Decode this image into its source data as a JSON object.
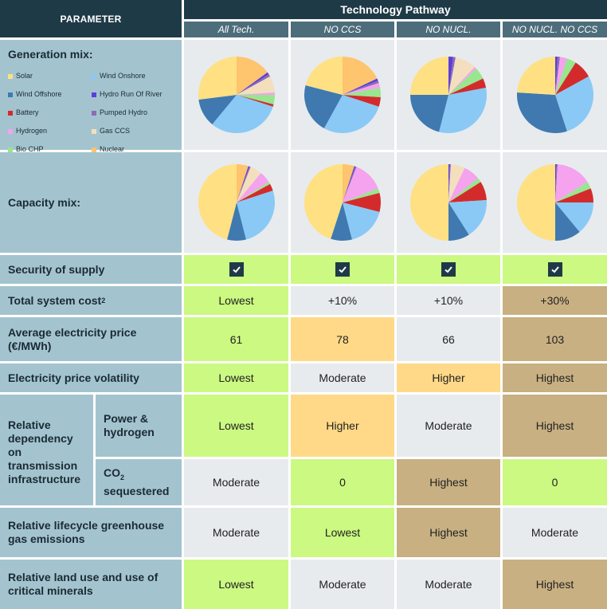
{
  "header": {
    "parameter": "PARAMETER",
    "technology_pathway": "Technology Pathway",
    "pathways": [
      "All Tech.",
      "NO CCS",
      "NO NUCL.",
      "NO NUCL. NO CCS"
    ]
  },
  "rows": {
    "generation_mix": "Generation mix:",
    "capacity_mix": "Capacity mix:",
    "security": "Security of supply",
    "cost_prefix": "Total system cost",
    "cost_sup": "2",
    "price_line1": "Average electricity price",
    "price_line2": "(€/MWh)",
    "volatility": "Electricity price volatility",
    "dependency": [
      "Relative",
      "dependency",
      "on",
      "transmission",
      "infrastructure"
    ],
    "power_h2": [
      "Power &",
      "hydrogen"
    ],
    "co2_prefix": "CO",
    "co2_sub": "2",
    "co2_line2": "sequestered",
    "ghg": [
      "Relative lifecycle greenhouse",
      "gas emissions"
    ],
    "land": [
      "Relative land use and use of",
      "critical minerals"
    ]
  },
  "legend": [
    {
      "label": "Solar",
      "color": "#ffe083"
    },
    {
      "label": "Wind Onshore",
      "color": "#8ac9f5"
    },
    {
      "label": "Wind Offshore",
      "color": "#3f79b0"
    },
    {
      "label": "Hydro Run Of River",
      "color": "#5b3fd8"
    },
    {
      "label": "Battery",
      "color": "#d32b2b"
    },
    {
      "label": "Pumped Hydro",
      "color": "#8e6ab8"
    },
    {
      "label": "Hydrogen",
      "color": "#f5a2ef"
    },
    {
      "label": "Gas CCS",
      "color": "#f3dfbd"
    },
    {
      "label": "Bio CHP",
      "color": "#98e690"
    },
    {
      "label": "Nuclear",
      "color": "#fec46e"
    }
  ],
  "values": {
    "security": [
      "check",
      "check",
      "check",
      "check"
    ],
    "cost": [
      "Lowest",
      "+10%",
      "+10%",
      "+30%"
    ],
    "price": [
      "61",
      "78",
      "66",
      "103"
    ],
    "volatility": [
      "Lowest",
      "Moderate",
      "Higher",
      "Highest"
    ],
    "power_h2": [
      "Lowest",
      "Higher",
      "Moderate",
      "Highest"
    ],
    "co2": [
      "Moderate",
      "0",
      "Highest",
      "0"
    ],
    "ghg": [
      "Moderate",
      "Lowest",
      "Highest",
      "Moderate"
    ],
    "land": [
      "Lowest",
      "Moderate",
      "Moderate",
      "Highest"
    ]
  },
  "pies": {
    "generation": [
      {
        "Solar": 27,
        "Wind Onshore": 31,
        "Wind Offshore": 12,
        "Hydro Run Of River": 1,
        "Battery": 1,
        "Pumped Hydro": 1,
        "Hydrogen": 1,
        "Gas CCS": 7,
        "Bio CHP": 4,
        "Nuclear": 15
      },
      {
        "Solar": 21,
        "Wind Onshore": 28,
        "Wind Offshore": 21,
        "Hydro Run Of River": 1,
        "Battery": 4,
        "Pumped Hydro": 1,
        "Hydrogen": 2,
        "Gas CCS": 0,
        "Bio CHP": 4,
        "Nuclear": 18
      },
      {
        "Solar": 25,
        "Wind Onshore": 32,
        "Wind Offshore": 21,
        "Hydro Run Of River": 2,
        "Battery": 4,
        "Pumped Hydro": 1,
        "Hydrogen": 1,
        "Gas CCS": 9,
        "Bio CHP": 5,
        "Nuclear": 0
      },
      {
        "Solar": 24,
        "Wind Onshore": 28,
        "Wind Offshore": 31,
        "Hydro Run Of River": 1,
        "Battery": 8,
        "Pumped Hydro": 1,
        "Hydrogen": 3,
        "Gas CCS": 0,
        "Bio CHP": 4,
        "Nuclear": 0
      }
    ],
    "capacity": [
      {
        "Solar": 46,
        "Wind Onshore": 26,
        "Wind Offshore": 8,
        "Hydro Run Of River": 0.5,
        "Battery": 3,
        "Pumped Hydro": 0.5,
        "Hydrogen": 5,
        "Gas CCS": 5,
        "Bio CHP": 1,
        "Nuclear": 5
      },
      {
        "Solar": 45,
        "Wind Onshore": 17,
        "Wind Offshore": 9,
        "Hydro Run Of River": 0.5,
        "Battery": 8,
        "Pumped Hydro": 0.5,
        "Hydrogen": 13,
        "Gas CCS": 0,
        "Bio CHP": 2,
        "Nuclear": 5
      },
      {
        "Solar": 50,
        "Wind Onshore": 17,
        "Wind Offshore": 9,
        "Hydro Run Of River": 0.5,
        "Battery": 8,
        "Pumped Hydro": 0.5,
        "Hydrogen": 7,
        "Gas CCS": 6,
        "Bio CHP": 2,
        "Nuclear": 0
      },
      {
        "Solar": 50,
        "Wind Onshore": 14,
        "Wind Offshore": 11,
        "Hydro Run Of River": 0.5,
        "Battery": 6,
        "Pumped Hydro": 0.5,
        "Hydrogen": 15,
        "Gas CCS": 0,
        "Bio CHP": 3,
        "Nuclear": 0
      }
    ],
    "order": [
      "Nuclear",
      "Hydro Run Of River",
      "Pumped Hydro",
      "Gas CCS",
      "Hydrogen",
      "Bio CHP",
      "Battery",
      "Wind Onshore",
      "Wind Offshore",
      "Solar"
    ]
  }
}
